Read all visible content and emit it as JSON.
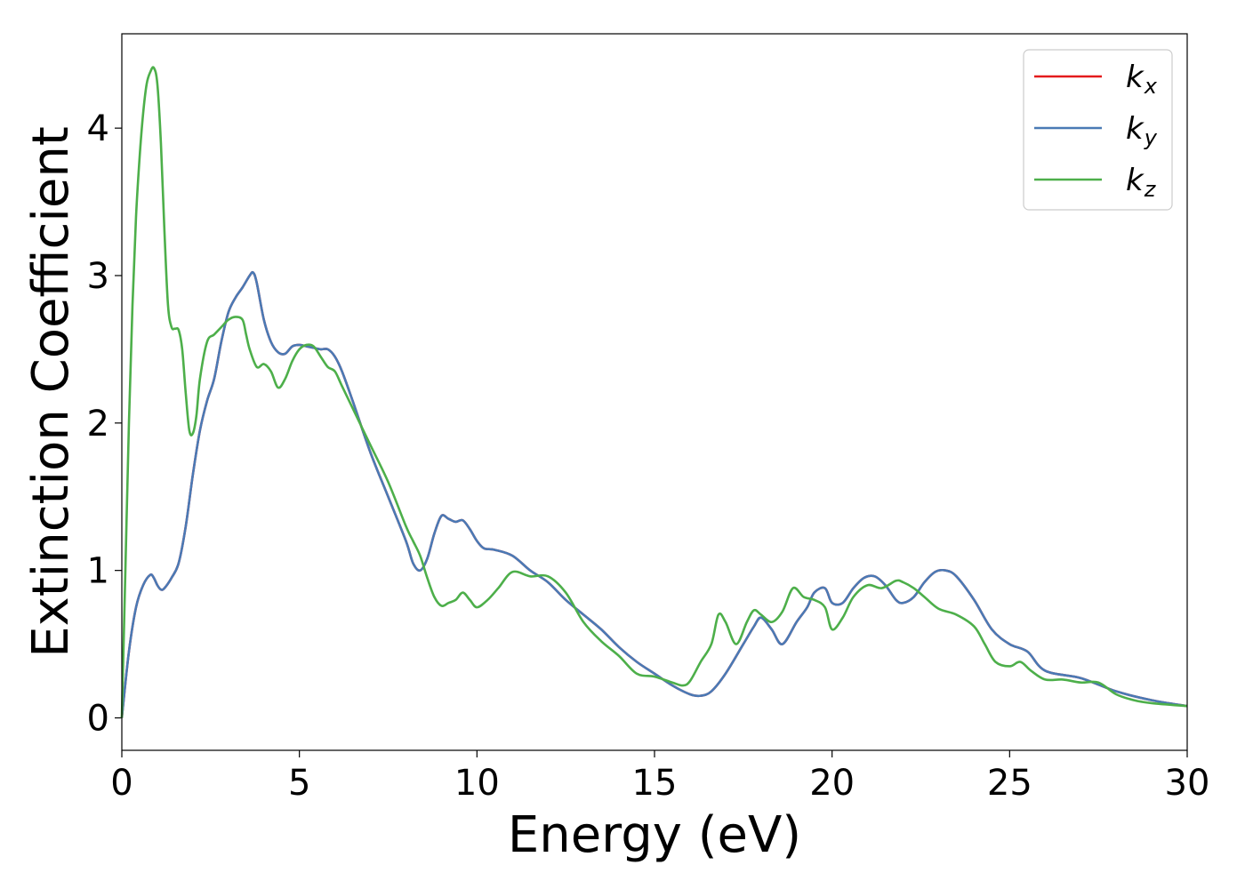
{
  "chart_data": {
    "type": "line",
    "xlabel": "Energy (eV)",
    "ylabel": "Extinction Coefficient",
    "xlim": [
      0,
      30
    ],
    "ylim": [
      -0.22,
      4.64
    ],
    "xticks": [
      0,
      5,
      10,
      15,
      20,
      25,
      30
    ],
    "yticks": [
      0,
      1,
      2,
      3,
      4
    ],
    "grid": false,
    "legend_position": "top-right",
    "series": [
      {
        "name": "k_x",
        "legend_base": "k",
        "legend_sub": "x",
        "color": "#e41a1c",
        "x": [
          0,
          0.2,
          0.4,
          0.6,
          0.8,
          0.9,
          1.0,
          1.1,
          1.2,
          1.4,
          1.6,
          1.8,
          2.0,
          2.2,
          2.4,
          2.6,
          2.8,
          3.0,
          3.2,
          3.4,
          3.6,
          3.7,
          3.8,
          4.0,
          4.2,
          4.4,
          4.6,
          4.8,
          5.0,
          5.2,
          5.4,
          5.6,
          5.8,
          6.0,
          6.2,
          6.5,
          7.0,
          7.5,
          8.0,
          8.2,
          8.4,
          8.6,
          8.8,
          9.0,
          9.2,
          9.4,
          9.6,
          9.8,
          10.0,
          10.2,
          10.5,
          11.0,
          11.5,
          12.0,
          12.5,
          13.0,
          13.5,
          14.0,
          14.5,
          15.0,
          15.5,
          16.0,
          16.3,
          16.6,
          17.0,
          17.5,
          17.8,
          18.0,
          18.3,
          18.6,
          19.0,
          19.3,
          19.5,
          19.8,
          20.0,
          20.3,
          20.6,
          20.9,
          21.2,
          21.5,
          21.8,
          22.0,
          22.3,
          22.6,
          22.9,
          23.2,
          23.5,
          24.0,
          24.5,
          25.0,
          25.5,
          26.0,
          27.0,
          28.0,
          29.0,
          30.0
        ],
        "y": [
          0,
          0.45,
          0.75,
          0.9,
          0.97,
          0.95,
          0.9,
          0.87,
          0.88,
          0.95,
          1.05,
          1.3,
          1.65,
          1.95,
          2.15,
          2.3,
          2.55,
          2.75,
          2.85,
          2.92,
          3.0,
          3.02,
          2.95,
          2.7,
          2.55,
          2.48,
          2.47,
          2.52,
          2.53,
          2.52,
          2.51,
          2.5,
          2.5,
          2.45,
          2.35,
          2.15,
          1.8,
          1.5,
          1.2,
          1.05,
          1.0,
          1.08,
          1.25,
          1.37,
          1.35,
          1.33,
          1.34,
          1.28,
          1.2,
          1.15,
          1.14,
          1.1,
          1.0,
          0.92,
          0.8,
          0.7,
          0.6,
          0.48,
          0.38,
          0.3,
          0.22,
          0.16,
          0.15,
          0.18,
          0.3,
          0.5,
          0.62,
          0.68,
          0.6,
          0.5,
          0.65,
          0.75,
          0.85,
          0.88,
          0.78,
          0.78,
          0.88,
          0.95,
          0.96,
          0.9,
          0.8,
          0.78,
          0.82,
          0.92,
          0.99,
          1.0,
          0.96,
          0.8,
          0.6,
          0.5,
          0.45,
          0.32,
          0.27,
          0.18,
          0.12,
          0.08
        ]
      },
      {
        "name": "k_y",
        "legend_base": "k",
        "legend_sub": "y",
        "color": "#4a7ab5",
        "x": [
          0,
          0.2,
          0.4,
          0.6,
          0.8,
          0.9,
          1.0,
          1.1,
          1.2,
          1.4,
          1.6,
          1.8,
          2.0,
          2.2,
          2.4,
          2.6,
          2.8,
          3.0,
          3.2,
          3.4,
          3.6,
          3.7,
          3.8,
          4.0,
          4.2,
          4.4,
          4.6,
          4.8,
          5.0,
          5.2,
          5.4,
          5.6,
          5.8,
          6.0,
          6.2,
          6.5,
          7.0,
          7.5,
          8.0,
          8.2,
          8.4,
          8.6,
          8.8,
          9.0,
          9.2,
          9.4,
          9.6,
          9.8,
          10.0,
          10.2,
          10.5,
          11.0,
          11.5,
          12.0,
          12.5,
          13.0,
          13.5,
          14.0,
          14.5,
          15.0,
          15.5,
          16.0,
          16.3,
          16.6,
          17.0,
          17.5,
          17.8,
          18.0,
          18.3,
          18.6,
          19.0,
          19.3,
          19.5,
          19.8,
          20.0,
          20.3,
          20.6,
          20.9,
          21.2,
          21.5,
          21.8,
          22.0,
          22.3,
          22.6,
          22.9,
          23.2,
          23.5,
          24.0,
          24.5,
          25.0,
          25.5,
          26.0,
          27.0,
          28.0,
          29.0,
          30.0
        ],
        "y": [
          0,
          0.45,
          0.75,
          0.9,
          0.97,
          0.95,
          0.9,
          0.87,
          0.88,
          0.95,
          1.05,
          1.3,
          1.65,
          1.95,
          2.15,
          2.3,
          2.55,
          2.75,
          2.85,
          2.92,
          3.0,
          3.02,
          2.95,
          2.7,
          2.55,
          2.48,
          2.47,
          2.52,
          2.53,
          2.52,
          2.51,
          2.5,
          2.5,
          2.45,
          2.35,
          2.15,
          1.8,
          1.5,
          1.2,
          1.05,
          1.0,
          1.08,
          1.25,
          1.37,
          1.35,
          1.33,
          1.34,
          1.28,
          1.2,
          1.15,
          1.14,
          1.1,
          1.0,
          0.92,
          0.8,
          0.7,
          0.6,
          0.48,
          0.38,
          0.3,
          0.22,
          0.16,
          0.15,
          0.18,
          0.3,
          0.5,
          0.62,
          0.68,
          0.6,
          0.5,
          0.65,
          0.75,
          0.85,
          0.88,
          0.78,
          0.78,
          0.88,
          0.95,
          0.96,
          0.9,
          0.8,
          0.78,
          0.82,
          0.92,
          0.99,
          1.0,
          0.96,
          0.8,
          0.6,
          0.5,
          0.45,
          0.32,
          0.27,
          0.18,
          0.12,
          0.08
        ]
      },
      {
        "name": "k_z",
        "legend_base": "k",
        "legend_sub": "z",
        "color": "#4daf4a",
        "x": [
          0,
          0.1,
          0.2,
          0.3,
          0.4,
          0.5,
          0.6,
          0.7,
          0.8,
          0.9,
          1.0,
          1.1,
          1.2,
          1.3,
          1.4,
          1.5,
          1.6,
          1.7,
          1.8,
          1.9,
          2.0,
          2.1,
          2.2,
          2.4,
          2.6,
          2.8,
          3.0,
          3.2,
          3.4,
          3.5,
          3.6,
          3.8,
          4.0,
          4.2,
          4.4,
          4.6,
          4.8,
          5.0,
          5.2,
          5.4,
          5.6,
          5.8,
          6.0,
          6.2,
          6.5,
          7.0,
          7.5,
          8.0,
          8.2,
          8.4,
          8.6,
          8.8,
          9.0,
          9.2,
          9.4,
          9.6,
          9.8,
          10.0,
          10.3,
          10.6,
          11.0,
          11.5,
          12.0,
          12.5,
          13.0,
          13.5,
          14.0,
          14.5,
          15.0,
          15.5,
          15.8,
          16.0,
          16.3,
          16.6,
          16.8,
          17.0,
          17.3,
          17.6,
          17.8,
          18.0,
          18.3,
          18.6,
          18.9,
          19.2,
          19.5,
          19.8,
          20.0,
          20.3,
          20.6,
          21.0,
          21.4,
          21.8,
          22.0,
          22.3,
          22.6,
          23.0,
          23.5,
          24.0,
          24.3,
          24.6,
          25.0,
          25.3,
          25.6,
          26.0,
          26.5,
          27.0,
          27.5,
          28.0,
          28.5,
          29.0,
          30.0
        ],
        "y": [
          0,
          1.0,
          2.0,
          2.8,
          3.4,
          3.8,
          4.1,
          4.3,
          4.38,
          4.41,
          4.3,
          3.9,
          3.3,
          2.8,
          2.65,
          2.64,
          2.63,
          2.5,
          2.2,
          1.95,
          1.93,
          2.05,
          2.3,
          2.55,
          2.6,
          2.65,
          2.7,
          2.72,
          2.7,
          2.6,
          2.5,
          2.38,
          2.4,
          2.35,
          2.24,
          2.3,
          2.42,
          2.5,
          2.53,
          2.52,
          2.45,
          2.38,
          2.35,
          2.25,
          2.1,
          1.85,
          1.6,
          1.3,
          1.2,
          1.1,
          0.95,
          0.82,
          0.76,
          0.78,
          0.8,
          0.85,
          0.8,
          0.75,
          0.8,
          0.88,
          0.99,
          0.96,
          0.96,
          0.85,
          0.65,
          0.52,
          0.42,
          0.3,
          0.28,
          0.24,
          0.22,
          0.25,
          0.38,
          0.5,
          0.7,
          0.65,
          0.5,
          0.65,
          0.73,
          0.7,
          0.65,
          0.72,
          0.88,
          0.82,
          0.8,
          0.75,
          0.6,
          0.68,
          0.82,
          0.9,
          0.88,
          0.93,
          0.92,
          0.88,
          0.82,
          0.74,
          0.7,
          0.62,
          0.5,
          0.38,
          0.35,
          0.38,
          0.32,
          0.26,
          0.26,
          0.24,
          0.24,
          0.16,
          0.12,
          0.1,
          0.08
        ]
      }
    ]
  }
}
